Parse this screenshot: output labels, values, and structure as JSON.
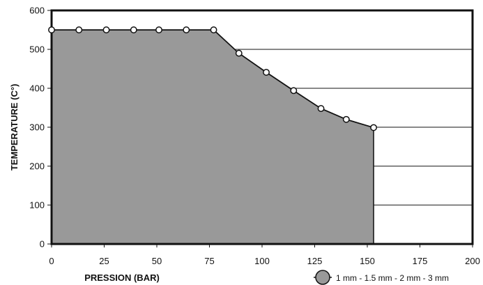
{
  "chart_data": {
    "type": "area",
    "title": "",
    "xlabel": "PRESSION (BAR)",
    "ylabel": "TEMPERATURE  (C°)",
    "xlim": [
      0,
      200
    ],
    "ylim": [
      0,
      600
    ],
    "xticks": [
      0,
      25,
      50,
      75,
      100,
      125,
      150,
      175,
      200
    ],
    "yticks": [
      0,
      100,
      200,
      300,
      400,
      500,
      600
    ],
    "grid": "horizontal",
    "legend_position": "bottom-right",
    "series": [
      {
        "name": "1 mm - 1.5 mm - 2 mm - 3 mm",
        "color": "#999999",
        "points": [
          {
            "x": 0,
            "y": 550
          },
          {
            "x": 13,
            "y": 550
          },
          {
            "x": 26,
            "y": 550
          },
          {
            "x": 39,
            "y": 550
          },
          {
            "x": 51,
            "y": 550
          },
          {
            "x": 64,
            "y": 550
          },
          {
            "x": 77,
            "y": 550
          },
          {
            "x": 89,
            "y": 490
          },
          {
            "x": 102,
            "y": 441
          },
          {
            "x": 115,
            "y": 394
          },
          {
            "x": 128,
            "y": 348
          },
          {
            "x": 140,
            "y": 320
          },
          {
            "x": 153,
            "y": 299
          }
        ]
      }
    ]
  }
}
